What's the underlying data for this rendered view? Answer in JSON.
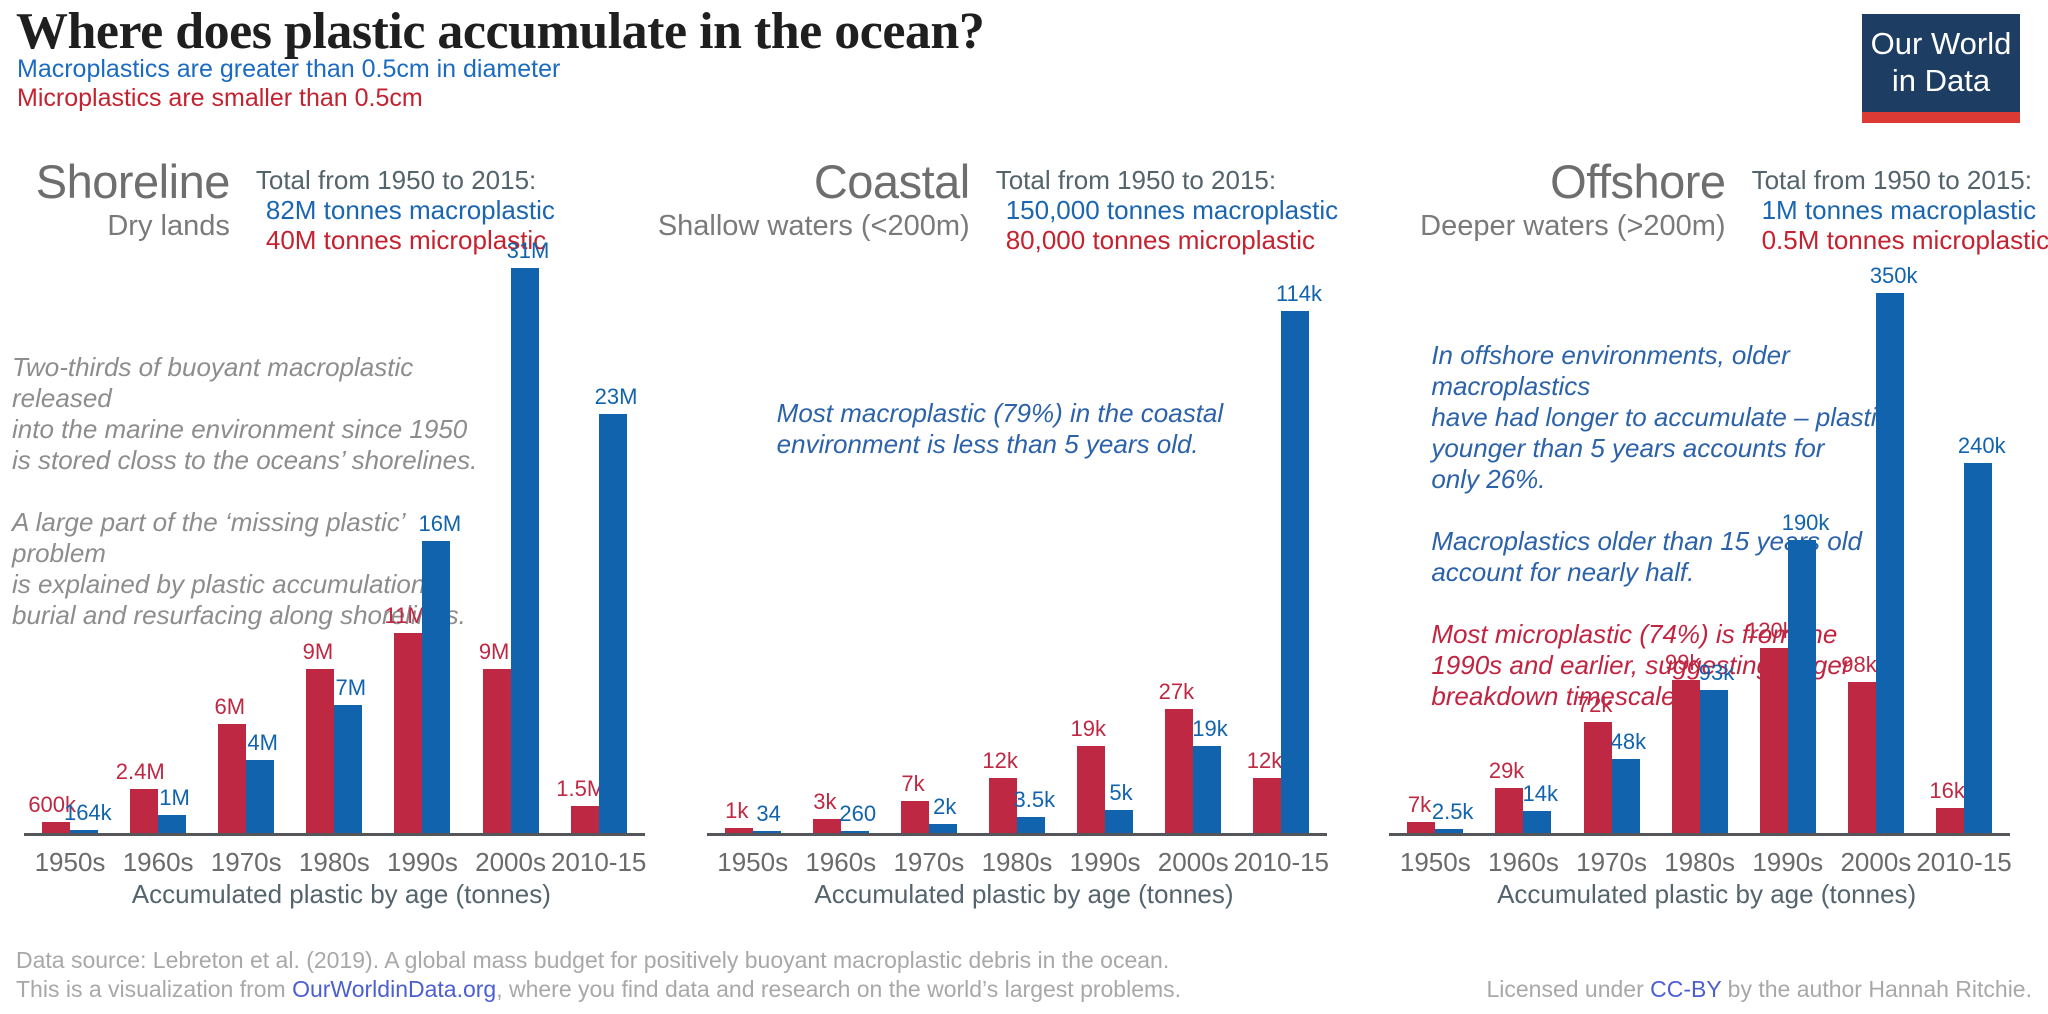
{
  "header": {
    "title": "Where does plastic accumulate in the ocean?",
    "subtitle_macro": "Macroplastics are greater than 0.5cm in diameter",
    "subtitle_micro": "Microplastics are smaller than 0.5cm",
    "logo_line1": "Our World",
    "logo_line2": "in Data"
  },
  "colors": {
    "macro_blue": "#1263ad",
    "micro_red": "#bf2843",
    "subtitle_blue": "#1b6bc1",
    "subtitle_red": "#c4222f",
    "annotation_grey": "#8d8d8d",
    "annotation_blue": "#2b62a9",
    "annotation_red": "#c02440",
    "logo_navy": "#1d3d63",
    "logo_red": "#dc3a35"
  },
  "chart_data": [
    {
      "type": "bar",
      "region": "Shoreline",
      "region_subtitle": "Dry lands",
      "totals_heading": "Total from 1950 to 2015:",
      "total_macroplastic": "82M tonnes macroplastic",
      "total_microplastic": "40M tonnes microplastic",
      "xlabel": "Accumulated plastic by age (tonnes)",
      "categories": [
        "1950s",
        "1960s",
        "1970s",
        "1980s",
        "1990s",
        "2000s",
        "2010-15"
      ],
      "unit": "tonnes",
      "ylim": [
        0,
        31000000
      ],
      "series": [
        {
          "name": "Microplastic",
          "color_key": "micro_red",
          "values": [
            600000,
            2400000,
            6000000,
            9000000,
            11000000,
            9000000,
            1500000
          ],
          "labels": [
            "600k",
            "2.4M",
            "6M",
            "9M",
            "11M",
            "9M",
            "1.5M"
          ]
        },
        {
          "name": "Macroplastic",
          "color_key": "macro_blue",
          "values": [
            164000,
            1000000,
            4000000,
            7000000,
            16000000,
            31000000,
            23000000
          ],
          "labels": [
            "164k",
            "1M",
            "4M",
            "7M",
            "16M",
            "31M",
            "23M"
          ]
        }
      ],
      "annotations": [
        {
          "tone": "grey",
          "text": "Two-thirds of buoyant macroplastic released\ninto the marine environment since 1950\nis stored closs to the oceans’ shorelines."
        },
        {
          "tone": "grey",
          "text": "A large part of the ‘missing plastic’ problem\nis explained by plastic accumulation,\nburial and resurfacing along shorelines."
        }
      ]
    },
    {
      "type": "bar",
      "region": "Coastal",
      "region_subtitle": "Shallow waters (<200m)",
      "totals_heading": "Total from 1950 to 2015:",
      "total_macroplastic": "150,000 tonnes macroplastic",
      "total_microplastic": "80,000 tonnes microplastic",
      "xlabel": "Accumulated plastic by age (tonnes)",
      "categories": [
        "1950s",
        "1960s",
        "1970s",
        "1980s",
        "1990s",
        "2000s",
        "2010-15"
      ],
      "unit": "tonnes",
      "ylim": [
        0,
        114000
      ],
      "series": [
        {
          "name": "Microplastic",
          "color_key": "micro_red",
          "values": [
            1000,
            3000,
            7000,
            12000,
            19000,
            27000,
            12000
          ],
          "labels": [
            "1k",
            "3k",
            "7k",
            "12k",
            "19k",
            "27k",
            "12k"
          ]
        },
        {
          "name": "Macroplastic",
          "color_key": "macro_blue",
          "values": [
            34,
            260,
            2000,
            3500,
            5000,
            19000,
            114000
          ],
          "labels": [
            "34",
            "260",
            "2k",
            "3.5k",
            "5k",
            "19k",
            "114k"
          ]
        }
      ],
      "annotations": [
        {
          "tone": "blue",
          "text": "Most macroplastic (79%) in the coastal\nenvironment is less than 5 years old."
        }
      ]
    },
    {
      "type": "bar",
      "region": "Offshore",
      "region_subtitle": "Deeper waters (>200m)",
      "totals_heading": "Total from 1950 to 2015:",
      "total_macroplastic": "1M tonnes macroplastic",
      "total_microplastic": "0.5M tonnes microplastic",
      "xlabel": "Accumulated plastic by age (tonnes)",
      "categories": [
        "1950s",
        "1960s",
        "1970s",
        "1980s",
        "1990s",
        "2000s",
        "2010-15"
      ],
      "unit": "tonnes",
      "ylim": [
        0,
        350000
      ],
      "series": [
        {
          "name": "Microplastic",
          "color_key": "micro_red",
          "values": [
            7000,
            29000,
            72000,
            99000,
            120000,
            98000,
            16000
          ],
          "labels": [
            "7k",
            "29k",
            "72k",
            "99k",
            "120k",
            "98k",
            "16k"
          ]
        },
        {
          "name": "Macroplastic",
          "color_key": "macro_blue",
          "values": [
            2500,
            14000,
            48000,
            93000,
            190000,
            350000,
            240000
          ],
          "labels": [
            "2.5k",
            "14k",
            "48k",
            "93k",
            "190k",
            "350k",
            "240k"
          ]
        }
      ],
      "annotations": [
        {
          "tone": "blue",
          "text": "In offshore environments, older macroplastics\nhave had longer to accumulate – plastics\nyounger than 5 years accounts for\nonly 26%."
        },
        {
          "tone": "blue",
          "text": "Macroplastics older than 15 years old\naccount for nearly half."
        },
        {
          "tone": "red",
          "text": "Most microplastic (74%) is from the\n1990s and earlier, suggesting longer\nbreakdown timescales."
        }
      ]
    }
  ],
  "footer": {
    "source_line": "Data source: Lebreton et al. (2019). A global mass budget for positively buoyant macroplastic debris in the ocean.",
    "viz_prefix": "This is a visualization from ",
    "viz_link": "OurWorldinData.org",
    "viz_suffix": ", where you find data and research on the world’s largest problems.",
    "license_prefix": "Licensed under ",
    "license_link": "CC-BY",
    "license_suffix": " by the author Hannah Ritchie."
  }
}
